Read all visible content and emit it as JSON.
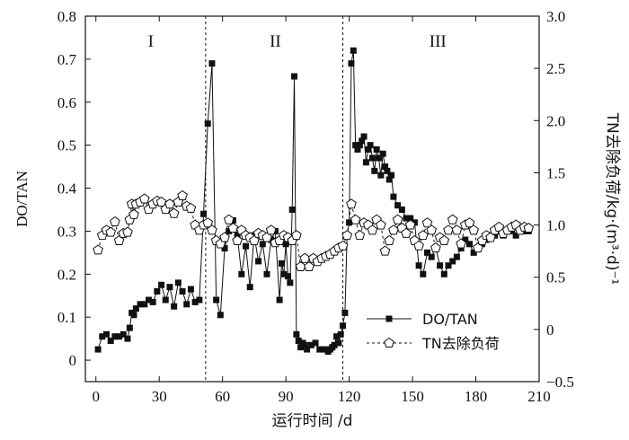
{
  "chart_data": {
    "type": "line",
    "title": "",
    "xlabel": "运行时间 /d",
    "ylabel_left": "DO/TAN",
    "ylabel_right": "TN去除负荷/kg·(m³·d)⁻¹",
    "xlim": [
      -5,
      210
    ],
    "ylim_left": [
      -0.05,
      0.8
    ],
    "ylim_right": [
      -0.5,
      3.0
    ],
    "x_ticks": [
      0,
      30,
      60,
      90,
      120,
      150,
      180,
      210
    ],
    "y_ticks_left": [
      0,
      0.1,
      0.2,
      0.3,
      0.4,
      0.5,
      0.6,
      0.7,
      0.8
    ],
    "y_ticks_right": [
      -0.5,
      0,
      0.5,
      1.0,
      1.5,
      2.0,
      2.5,
      3.0
    ],
    "x_tick_labels": [
      "0",
      "30",
      "60",
      "90",
      "120",
      "150",
      "180",
      "210"
    ],
    "y_tick_labels_left": [
      "0",
      "0.1",
      "0.2",
      "0.3",
      "0.4",
      "0.5",
      "0.6",
      "0.7",
      "0.8"
    ],
    "y_tick_labels_right": [
      "−0.5",
      "0",
      "0.5",
      "1.0",
      "1.5",
      "2.0",
      "2.5",
      "3.0"
    ],
    "grid": false,
    "legend_position": "bottom-center",
    "phase_boundaries": [
      52,
      117
    ],
    "phases": [
      {
        "label": "I",
        "x": 26
      },
      {
        "label": "II",
        "x": 85
      },
      {
        "label": "III",
        "x": 162
      }
    ],
    "series": [
      {
        "name": "DO/TAN",
        "axis": "left",
        "marker": "filled-square",
        "color": "#111111",
        "x": [
          1,
          3,
          5,
          7,
          9,
          11,
          13,
          15,
          16,
          17,
          18,
          19,
          21,
          23,
          25,
          27,
          29,
          31,
          33,
          35,
          37,
          39,
          41,
          43,
          45,
          47,
          49,
          51,
          53,
          55,
          57,
          59,
          61,
          63,
          65,
          67,
          69,
          71,
          73,
          75,
          77,
          79,
          81,
          83,
          85,
          87,
          88,
          89,
          90,
          91,
          92,
          93,
          94,
          95,
          96,
          97,
          98,
          99,
          100,
          102,
          104,
          106,
          108,
          110,
          111,
          112,
          113,
          114,
          115,
          116,
          117,
          118,
          119,
          120,
          121,
          122,
          123,
          124,
          125,
          126,
          127,
          128,
          129,
          130,
          131,
          132,
          133,
          134,
          135,
          136,
          137,
          138,
          139,
          140,
          141,
          143,
          145,
          147,
          149,
          151,
          153,
          155,
          157,
          159,
          161,
          163,
          165,
          167,
          169,
          171,
          173,
          175,
          177,
          179,
          181,
          183,
          185,
          187,
          189,
          191,
          193,
          195,
          197,
          199,
          201,
          203,
          205
        ],
        "values": [
          0.025,
          0.055,
          0.06,
          0.045,
          0.055,
          0.055,
          0.06,
          0.05,
          0.075,
          0.11,
          0.105,
          0.12,
          0.13,
          0.13,
          0.14,
          0.135,
          0.16,
          0.175,
          0.14,
          0.17,
          0.125,
          0.18,
          0.16,
          0.13,
          0.165,
          0.135,
          0.14,
          0.34,
          0.55,
          0.69,
          0.14,
          0.105,
          0.26,
          0.3,
          0.325,
          0.29,
          0.2,
          0.265,
          0.17,
          0.29,
          0.23,
          0.27,
          0.2,
          0.28,
          0.3,
          0.14,
          0.225,
          0.2,
          0.27,
          0.195,
          0.18,
          0.35,
          0.66,
          0.06,
          0.045,
          0.03,
          0.04,
          0.035,
          0.025,
          0.035,
          0.04,
          0.025,
          0.025,
          0.02,
          0.025,
          0.03,
          0.035,
          0.055,
          0.04,
          0.06,
          0.08,
          0.11,
          0.29,
          0.32,
          0.69,
          0.72,
          0.5,
          0.49,
          0.5,
          0.51,
          0.52,
          0.46,
          0.49,
          0.5,
          0.47,
          0.44,
          0.49,
          0.47,
          0.43,
          0.48,
          0.45,
          0.44,
          0.42,
          0.43,
          0.38,
          0.36,
          0.35,
          0.33,
          0.33,
          0.32,
          0.22,
          0.2,
          0.25,
          0.24,
          0.26,
          0.22,
          0.2,
          0.22,
          0.23,
          0.24,
          0.26,
          0.28,
          0.27,
          0.25,
          0.26,
          0.27,
          0.28,
          0.29,
          0.29,
          0.3,
          0.29,
          0.3,
          0.3,
          0.29,
          0.3,
          0.3,
          0.3
        ]
      },
      {
        "name": "TN去除负荷",
        "axis": "right",
        "marker": "open-pentagon",
        "color": "#111111",
        "x": [
          1,
          3,
          5,
          7,
          9,
          11,
          13,
          15,
          16,
          17,
          18,
          19,
          21,
          23,
          25,
          27,
          29,
          31,
          33,
          35,
          37,
          39,
          41,
          43,
          45,
          47,
          49,
          51,
          53,
          55,
          57,
          59,
          61,
          63,
          65,
          67,
          69,
          71,
          73,
          75,
          77,
          79,
          81,
          83,
          85,
          87,
          89,
          91,
          93,
          95,
          97,
          99,
          101,
          103,
          105,
          107,
          109,
          111,
          113,
          115,
          117,
          119,
          121,
          123,
          125,
          127,
          129,
          131,
          133,
          135,
          137,
          139,
          141,
          143,
          145,
          147,
          149,
          151,
          153,
          155,
          157,
          159,
          161,
          163,
          165,
          167,
          169,
          171,
          173,
          175,
          177,
          179,
          181,
          183,
          185,
          187,
          189,
          191,
          193,
          195,
          197,
          199,
          201,
          203,
          205
        ],
        "values": [
          0.76,
          0.9,
          0.95,
          0.93,
          1.03,
          0.85,
          0.92,
          0.93,
          1.05,
          1.2,
          1.1,
          1.2,
          1.22,
          1.25,
          1.15,
          1.2,
          1.23,
          1.22,
          1.15,
          1.2,
          1.11,
          1.22,
          1.28,
          1.18,
          1.16,
          1.0,
          0.95,
          1.0,
          1.02,
          0.95,
          0.85,
          0.82,
          0.88,
          1.05,
          0.97,
          0.85,
          0.95,
          0.9,
          0.88,
          0.85,
          0.92,
          0.9,
          0.88,
          0.95,
          0.83,
          0.85,
          0.9,
          0.88,
          0.85,
          0.9,
          0.6,
          0.68,
          0.6,
          0.68,
          0.65,
          0.68,
          0.7,
          0.72,
          0.75,
          0.78,
          0.8,
          0.9,
          1.2,
          1.05,
          0.9,
          1.02,
          1.0,
          0.95,
          1.05,
          1.0,
          0.75,
          0.85,
          0.95,
          1.05,
          0.97,
          0.92,
          1.0,
          0.85,
          0.8,
          0.9,
          1.02,
          0.95,
          0.78,
          0.88,
          0.85,
          0.95,
          1.05,
          0.95,
          0.82,
          1.0,
          1.02,
          0.95,
          0.78,
          0.85,
          0.9,
          0.88,
          0.95,
          0.98,
          0.92,
          0.95,
          0.98,
          1.0,
          0.95,
          0.98,
          0.97
        ]
      }
    ]
  }
}
